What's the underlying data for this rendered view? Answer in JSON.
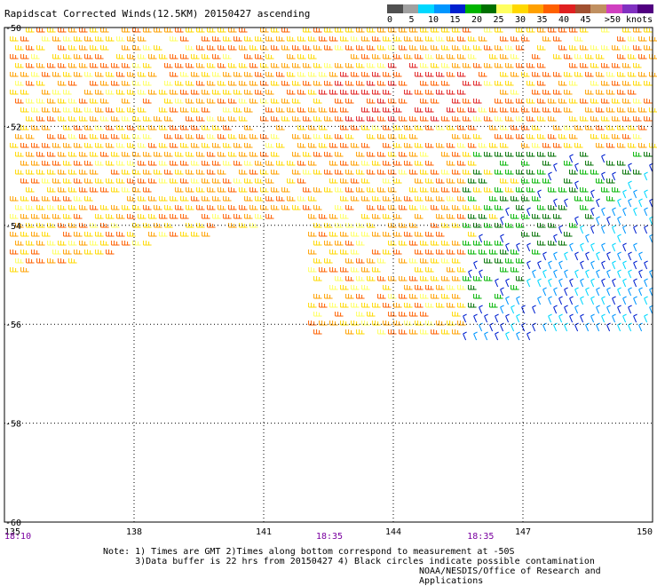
{
  "title": "Rapidscat Corrected Winds(12.5KM) 20150427 ascending",
  "legend": {
    "labels": [
      "0",
      "5",
      "10",
      "15",
      "20",
      "25",
      "30",
      "35",
      "40",
      "45",
      ">50 knots"
    ],
    "colors": [
      "#505050",
      "#a0a0a0",
      "#00d8ff",
      "#0096ff",
      "#0020d0",
      "#00b400",
      "#007000",
      "#ffff60",
      "#ffd800",
      "#ffa000",
      "#ff6000",
      "#e02020",
      "#a05030",
      "#c09060",
      "#d040c0",
      "#8030c0",
      "#500080"
    ]
  },
  "map": {
    "lon_ticks": [
      "135",
      "138",
      "141",
      "144",
      "147",
      "150"
    ],
    "lat_ticks": [
      "-50",
      "-52",
      "-54",
      "-56",
      "-58",
      "-60"
    ],
    "times": [
      {
        "label": "18:10",
        "lon": 135
      },
      {
        "label": "18:35",
        "lon": 142.5
      },
      {
        "label": "18:35",
        "lon": 146
      }
    ],
    "time_color": "#7a00a0"
  },
  "notes": {
    "line1": "Note: 1) Times are GMT 2)Times along bottom correspond to measurement at -50S",
    "line2": "      3)Data buffer is 22 hrs from 20150427 4) Black circles indicate possible contamination"
  },
  "credit": "NOAA/NESDIS/Office of Research and Applications"
}
